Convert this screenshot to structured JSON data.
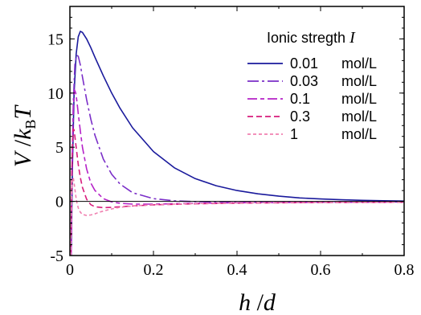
{
  "chart_data": {
    "type": "line",
    "title": "",
    "xlabel": {
      "main": "h",
      "sep": " /",
      "den": "d"
    },
    "ylabel": {
      "v": "V",
      "sep": " /",
      "k": "k",
      "sub": "B",
      "t": "T"
    },
    "xlim": [
      0,
      0.8
    ],
    "ylim": [
      -5,
      18
    ],
    "x_ticks": [
      0,
      0.2,
      0.4,
      0.6,
      0.8
    ],
    "x_tick_labels": [
      "0",
      "0.2",
      "0.4",
      "0.6",
      "0.8"
    ],
    "y_ticks": [
      -5,
      0,
      5,
      10,
      15
    ],
    "y_tick_labels": [
      "-5",
      "0",
      "5",
      "10",
      "15"
    ],
    "grid": false,
    "zero_line": true,
    "legend": {
      "title": "Ionic stregth I",
      "title_text": "Ionic stregth ",
      "title_var": "I",
      "placement": "top-right"
    },
    "series": [
      {
        "name": "0.01 mol/L",
        "value_label": "0.01",
        "unit_label": "mol/L",
        "color": "#1a1a9c",
        "dash": "solid",
        "x": [
          0.003,
          0.006,
          0.01,
          0.015,
          0.02,
          0.025,
          0.03,
          0.04,
          0.05,
          0.06,
          0.08,
          0.1,
          0.12,
          0.15,
          0.2,
          0.25,
          0.3,
          0.35,
          0.4,
          0.45,
          0.5,
          0.55,
          0.6,
          0.65,
          0.7,
          0.75,
          0.8
        ],
        "y": [
          -5,
          3,
          10,
          13.6,
          15.2,
          15.7,
          15.6,
          15.0,
          14.2,
          13.3,
          11.6,
          10.0,
          8.6,
          6.8,
          4.6,
          3.1,
          2.1,
          1.45,
          1.0,
          0.7,
          0.48,
          0.32,
          0.22,
          0.15,
          0.1,
          0.06,
          0.03
        ]
      },
      {
        "name": "0.03 mol/L",
        "value_label": "0.03",
        "unit_label": "mol/L",
        "color": "#7a2ec8",
        "dash": "dashdot",
        "x": [
          0.003,
          0.005,
          0.008,
          0.012,
          0.016,
          0.02,
          0.025,
          0.03,
          0.04,
          0.05,
          0.06,
          0.08,
          0.1,
          0.12,
          0.15,
          0.2,
          0.25,
          0.3,
          0.35,
          0.4,
          0.5,
          0.6,
          0.7,
          0.8
        ],
        "y": [
          -5,
          2,
          9,
          12.6,
          13.5,
          13.4,
          12.6,
          11.5,
          9.4,
          7.6,
          6.1,
          3.9,
          2.5,
          1.6,
          0.8,
          0.25,
          0.05,
          -0.02,
          -0.06,
          -0.07,
          -0.08,
          -0.07,
          -0.06,
          -0.05
        ]
      },
      {
        "name": "0.1 mol/L",
        "value_label": "0.1",
        "unit_label": "mol/L",
        "color": "#b522c8",
        "dash": "longshort",
        "x": [
          0.003,
          0.005,
          0.008,
          0.011,
          0.014,
          0.017,
          0.02,
          0.025,
          0.03,
          0.04,
          0.05,
          0.06,
          0.08,
          0.1,
          0.12,
          0.15,
          0.2,
          0.3,
          0.4,
          0.6,
          0.8
        ],
        "y": [
          -5,
          3,
          8.5,
          10.3,
          10.0,
          9.2,
          8.1,
          6.5,
          5.0,
          3.0,
          1.7,
          1.0,
          0.25,
          -0.05,
          -0.18,
          -0.25,
          -0.25,
          -0.18,
          -0.13,
          -0.09,
          -0.07
        ]
      },
      {
        "name": "0.3 mol/L",
        "value_label": "0.3",
        "unit_label": "mol/L",
        "color": "#d81c7c",
        "dash": "dashed",
        "x": [
          0.002,
          0.004,
          0.006,
          0.008,
          0.01,
          0.012,
          0.015,
          0.02,
          0.025,
          0.03,
          0.04,
          0.05,
          0.06,
          0.08,
          0.1,
          0.15,
          0.2,
          0.3,
          0.4,
          0.6,
          0.8
        ],
        "y": [
          -5,
          1,
          5.2,
          6.7,
          6.6,
          6.0,
          5.0,
          3.4,
          2.2,
          1.3,
          0.2,
          -0.3,
          -0.5,
          -0.58,
          -0.55,
          -0.42,
          -0.32,
          -0.22,
          -0.16,
          -0.1,
          -0.08
        ]
      },
      {
        "name": "1 mol/L",
        "value_label": "1",
        "unit_label": "mol/L",
        "color": "#f080b0",
        "dash": "shortdash",
        "x": [
          0.002,
          0.004,
          0.006,
          0.008,
          0.01,
          0.013,
          0.016,
          0.02,
          0.025,
          0.03,
          0.04,
          0.05,
          0.06,
          0.07,
          0.08,
          0.1,
          0.12,
          0.15,
          0.2,
          0.3,
          0.4,
          0.6,
          0.8
        ],
        "y": [
          -5,
          0.5,
          2.1,
          2.2,
          1.7,
          0.8,
          0.0,
          -0.6,
          -1.0,
          -1.2,
          -1.3,
          -1.25,
          -1.15,
          -1.0,
          -0.9,
          -0.7,
          -0.55,
          -0.42,
          -0.3,
          -0.2,
          -0.14,
          -0.09,
          -0.07
        ]
      }
    ]
  }
}
